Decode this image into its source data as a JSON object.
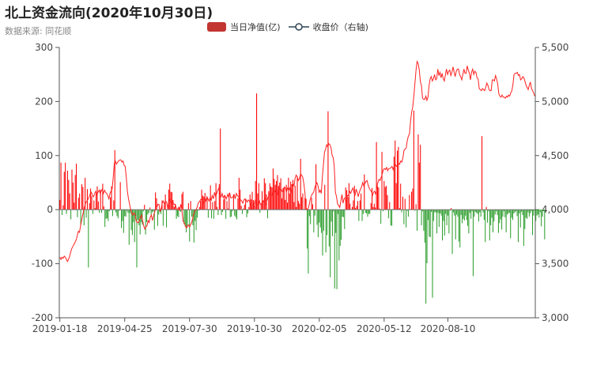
{
  "title": "北上资金流向(2020年10月30日)",
  "subtitle": "数据来源: 同花顺",
  "legend": {
    "bar_label": "当日净值(亿)",
    "line_label": "收盘价（右轴)"
  },
  "colors": {
    "positive": "#ff0000",
    "negative": "#2e9e2e",
    "line": "#ff2020",
    "legend_bar": "#c23531",
    "legend_line": "#2f4554",
    "axis": "#555555"
  },
  "chart_data": {
    "type": "bar",
    "title": "北上资金流向(2020年10月30日)",
    "xlabel": "",
    "ylabel": "",
    "left_axis": {
      "min": -200,
      "max": 300,
      "ticks": [
        "300",
        "200",
        "100",
        "0",
        "-100",
        "-200"
      ],
      "tick_values": [
        300,
        200,
        100,
        0,
        -100,
        -200
      ]
    },
    "right_axis": {
      "min": 3000,
      "max": 5500,
      "ticks": [
        "5,500",
        "5,000",
        "4,500",
        "4,000",
        "3,500",
        "3,000"
      ],
      "tick_values": [
        5500,
        5000,
        4500,
        4000,
        3500,
        3000
      ]
    },
    "x_ticks": [
      "2019-01-18",
      "2019-04-25",
      "2019-07-30",
      "2019-10-30",
      "2020-02-05",
      "2020-05-12",
      "2020-08-10"
    ],
    "x_tick_index": [
      0,
      59,
      118,
      177,
      236,
      295,
      353
    ],
    "num_days": 433,
    "series": [
      {
        "name": "当日净值(亿)",
        "kind": "bar",
        "values": [
          18,
          87,
          -10,
          8,
          70,
          87,
          -8,
          72,
          55,
          30,
          -18,
          74,
          50,
          13,
          64,
          85,
          -14,
          22,
          30,
          -28,
          47,
          42,
          -29,
          59,
          -15,
          38,
          -107,
          12,
          39,
          25,
          -8,
          17,
          3,
          30,
          43,
          15,
          -6,
          37,
          -6,
          48,
          6,
          -32,
          -17,
          -16,
          -21,
          -3,
          23,
          43,
          -12,
          17,
          110,
          -5,
          -12,
          -16,
          -2,
          51,
          -34,
          -21,
          -43,
          -12,
          -13,
          -2,
          -6,
          -65,
          -6,
          -38,
          -47,
          -23,
          -60,
          -12,
          -107,
          -19,
          -29,
          -46,
          -23,
          -28,
          -3,
          9,
          -46,
          -23,
          -9,
          -6,
          4,
          -10,
          -5,
          -3,
          -37,
          32,
          21,
          -30,
          -9,
          -1,
          -8,
          17,
          -30,
          9,
          28,
          -33,
          3,
          37,
          48,
          33,
          32,
          18,
          5,
          10,
          -17,
          -12,
          -14,
          5,
          -4,
          29,
          33,
          -27,
          -31,
          -42,
          -33,
          12,
          -59,
          16,
          -13,
          -29,
          -61,
          -21,
          -38,
          -15,
          -2,
          5,
          16,
          37,
          26,
          24,
          31,
          1,
          22,
          -15,
          1,
          45,
          -16,
          14,
          -17,
          16,
          49,
          5,
          -10,
          47,
          150,
          -10,
          -4,
          19,
          27,
          -17,
          16,
          2,
          31,
          -14,
          -13,
          -3,
          28,
          -11,
          -14,
          -18,
          21,
          59,
          37,
          7,
          -8,
          2,
          9,
          20,
          -14,
          -7,
          5,
          28,
          19,
          33,
          18,
          7,
          53,
          215,
          30,
          49,
          -6,
          11,
          34,
          17,
          58,
          49,
          28,
          -16,
          34,
          49,
          43,
          41,
          76,
          57,
          46,
          53,
          64,
          44,
          50,
          58,
          21,
          40,
          41,
          18,
          46,
          13,
          59,
          30,
          52,
          47,
          55,
          14,
          44,
          5,
          62,
          16,
          11,
          94,
          23,
          30,
          1,
          22,
          20,
          -72,
          -118,
          -12,
          -27,
          22,
          10,
          -42,
          -11,
          84,
          -28,
          -51,
          -24,
          -33,
          -43,
          -85,
          -39,
          46,
          -79,
          -47,
          182,
          -68,
          -125,
          -22,
          -49,
          -3,
          -146,
          -43,
          -147,
          -8,
          -94,
          -67,
          -56,
          -13,
          -14,
          -36,
          41,
          36,
          23,
          49,
          11,
          1,
          5,
          17,
          44,
          3,
          7,
          16,
          -21,
          17,
          30,
          -21,
          -8,
          65,
          -6,
          -7,
          -13,
          -8,
          -8,
          12,
          40,
          5,
          11,
          4,
          125,
          43,
          41,
          2,
          -26,
          107,
          -3,
          53,
          42,
          44,
          27,
          -16,
          14,
          -29,
          -30,
          1,
          98,
          128,
          49,
          109,
          116,
          3,
          48,
          -5,
          24,
          -27,
          20,
          -33,
          -2,
          -13,
          27,
          1,
          33,
          39,
          183,
          -2,
          10,
          -39,
          139,
          87,
          120,
          -29,
          -3,
          -39,
          -61,
          -174,
          -99,
          -19,
          -50,
          -51,
          -4,
          -163,
          -21,
          -5,
          -5,
          -44,
          -6,
          -32,
          -7,
          -11,
          -57,
          -21,
          -48,
          -8,
          -29,
          -11,
          -44,
          -2,
          3,
          -82,
          -5,
          -11,
          -55,
          -9,
          -13,
          -59,
          -70,
          -10,
          -25,
          -17,
          -20,
          -11,
          -19,
          -30,
          -44,
          -6,
          -17,
          -3,
          -123,
          -13,
          -4,
          -6,
          -8,
          -22,
          -5,
          -13,
          136,
          -5,
          -19,
          -60,
          5,
          -24,
          -3,
          -57,
          -29,
          -15,
          -42,
          -22,
          -9,
          -3,
          -10,
          -43,
          -25,
          -18,
          -37,
          -13,
          -3,
          -14,
          -42,
          -9,
          -7,
          -6,
          -53,
          -15,
          -19,
          -7,
          -5,
          -3,
          -12,
          -60,
          -7,
          -33,
          -4,
          -10,
          -67,
          -36,
          -15,
          -17,
          -5,
          -13,
          -7,
          -3,
          -47,
          -11,
          -2,
          -21,
          -11,
          -9,
          -15,
          -5,
          -31,
          -13,
          -2,
          -55
        ]
      },
      {
        "name": "收盘价（右轴)",
        "kind": "line",
        "axis": "right",
        "values": [
          3560,
          3540,
          3560,
          3550,
          3570,
          3560,
          3540,
          3520,
          3540,
          3570,
          3610,
          3640,
          3660,
          3680,
          3700,
          3720,
          3760,
          3800,
          3790,
          3850,
          3900,
          3950,
          4000,
          4040,
          4070,
          4080,
          4100,
          4120,
          4150,
          4160,
          4130,
          4120,
          4150,
          4170,
          4140,
          4160,
          4180,
          4150,
          4170,
          4190,
          4150,
          4180,
          4160,
          4150,
          4130,
          4100,
          4150,
          4170,
          4190,
          4300,
          4430,
          4450,
          4420,
          4440,
          4450,
          4460,
          4460,
          4440,
          4450,
          4410,
          4400,
          4300,
          4170,
          4100,
          4050,
          4000,
          3970,
          3950,
          3970,
          3960,
          3900,
          3880,
          3880,
          3900,
          3930,
          3950,
          3900,
          3850,
          3820,
          3840,
          3850,
          3900,
          3880,
          3930,
          3950,
          3900,
          3940,
          3980,
          4000,
          4020,
          4050,
          4050,
          3980,
          4010,
          4060,
          4080,
          4050,
          4080,
          4070,
          4010,
          4080,
          4100,
          4060,
          4080,
          4060,
          4050,
          4050,
          4010,
          4000,
          4020,
          3990,
          4050,
          4000,
          3900,
          3880,
          3860,
          3830,
          3850,
          3860,
          3840,
          3860,
          3880,
          3920,
          3960,
          3990,
          4000,
          4020,
          4060,
          4070,
          4090,
          4100,
          4090,
          4060,
          4110,
          4080,
          4120,
          4100,
          4080,
          4110,
          4090,
          4130,
          4100,
          4160,
          4120,
          4150,
          4180,
          4200,
          4140,
          4120,
          4150,
          4110,
          4130,
          4120,
          4100,
          4140,
          4120,
          4150,
          4110,
          4110,
          4120,
          4140,
          4100,
          4150,
          4130,
          4120,
          4100,
          4090,
          4080,
          4060,
          4090,
          4100,
          4090,
          4070,
          4090,
          4080,
          4050,
          4010,
          4040,
          4030,
          4080,
          4050,
          4040,
          4050,
          4090,
          4050,
          4050,
          4080,
          4070,
          4100,
          4050,
          4080,
          4110,
          4130,
          4150,
          4130,
          4130,
          4170,
          4160,
          4180,
          4150,
          4130,
          4200,
          4180,
          4190,
          4170,
          4160,
          4210,
          4200,
          4160,
          4200,
          4180,
          4200,
          4150,
          4210,
          4240,
          4220,
          4290,
          4320,
          4300,
          4270,
          4290,
          4330,
          4320,
          4300,
          4240,
          4160,
          4020,
          4000,
          4010,
          4050,
          4100,
          4130,
          4150,
          4160,
          4200,
          4230,
          4250,
          4220,
          4160,
          4180,
          4150,
          4300,
          4420,
          4530,
          4560,
          4600,
          4580,
          4610,
          4600,
          4570,
          4500,
          4480,
          4390,
          4160,
          4120,
          4050,
          4040,
          4020,
          4080,
          4140,
          4060,
          4100,
          4110,
          4080,
          4130,
          4130,
          4170,
          4150,
          4180,
          4200,
          4160,
          4130,
          4190,
          4160,
          4120,
          4160,
          4190,
          4210,
          4250,
          4220,
          4240,
          4260,
          4270,
          4230,
          4200,
          4180,
          4170,
          4130,
          4160,
          4170,
          4140,
          4210,
          4250,
          4280,
          4270,
          4300,
          4330,
          4370,
          4380,
          4370,
          4390,
          4360,
          4380,
          4380,
          4390,
          4400,
          4370,
          4410,
          4420,
          4400,
          4410,
          4430,
          4420,
          4450,
          4440,
          4480,
          4550,
          4560,
          4570,
          4640,
          4680,
          4700,
          4820,
          4900,
          4950,
          5050,
          5170,
          5290,
          5370,
          5350,
          5290,
          5180,
          5150,
          5030,
          5020,
          5020,
          5050,
          5010,
          5040,
          5150,
          5210,
          5230,
          5190,
          5210,
          5250,
          5200,
          5210,
          5300,
          5240,
          5270,
          5220,
          5260,
          5210,
          5190,
          5250,
          5300,
          5250,
          5280,
          5290,
          5240,
          5270,
          5320,
          5270,
          5230,
          5280,
          5300,
          5300,
          5250,
          5230,
          5200,
          5250,
          5300,
          5260,
          5260,
          5330,
          5290,
          5260,
          5200,
          5270,
          5300,
          5250,
          5280,
          5270,
          5220,
          5210,
          5120,
          5110,
          5100,
          5120,
          5110,
          5100,
          5130,
          5170,
          5150,
          5110,
          5100,
          5100,
          5200,
          5200,
          5190,
          5240,
          5210,
          5160,
          5070,
          5050,
          5040,
          5060,
          5040,
          5040,
          5030,
          5050,
          5040,
          5060,
          5050,
          5080,
          5100,
          5160,
          5250,
          5260,
          5260,
          5270,
          5240,
          5250,
          5200,
          5210,
          5230,
          5220,
          5190,
          5150,
          5130,
          5110,
          5150,
          5180,
          5120,
          5100,
          5080,
          5050
        ]
      }
    ]
  }
}
